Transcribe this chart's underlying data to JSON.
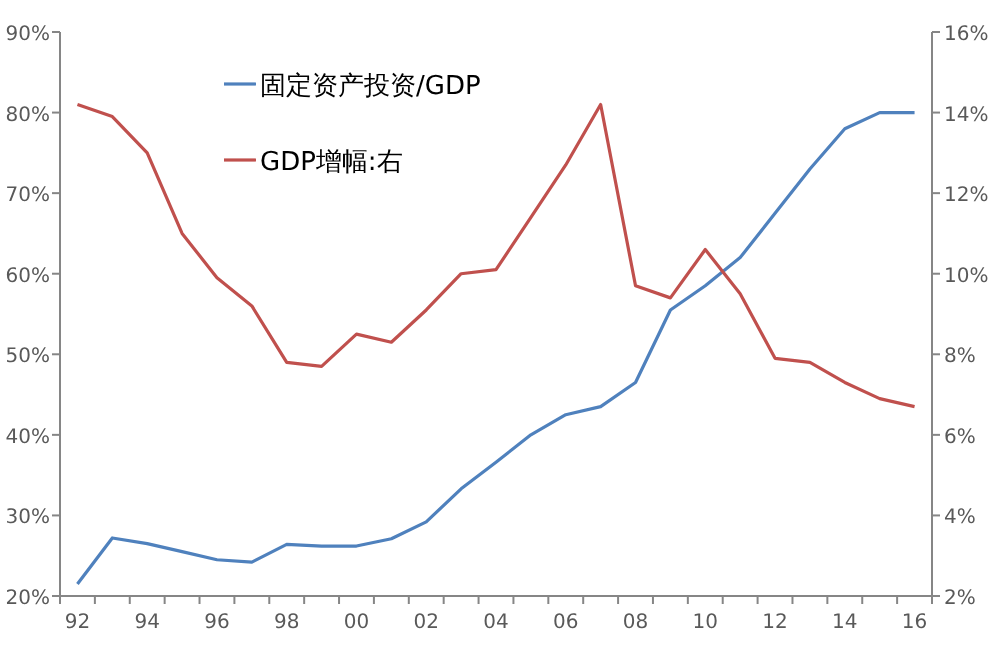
{
  "chart_data": {
    "type": "line",
    "categories": [
      "92",
      null,
      "94",
      null,
      "96",
      null,
      "98",
      null,
      "00",
      null,
      "02",
      null,
      "04",
      null,
      "06",
      null,
      "08",
      null,
      "10",
      null,
      "12",
      null,
      "14",
      null,
      "16"
    ],
    "series": [
      {
        "name": "固定资产投资/GDP",
        "color": "#4f81bd",
        "values": [
          21.5,
          27.2,
          26.5,
          25.5,
          24.5,
          24.2,
          26.4,
          26.2,
          26.2,
          27.1,
          29.2,
          33.3,
          36.6,
          40,
          42.5,
          43.5,
          46.5,
          55.5,
          58.5,
          62,
          67.5,
          73,
          78,
          80,
          80
        ]
      },
      {
        "name": "GDP增幅:右",
        "color": "#c0504d",
        "axis": "y2",
        "values": [
          14.2,
          13.9,
          13.0,
          11.0,
          9.9,
          9.2,
          7.8,
          7.7,
          8.5,
          8.3,
          9.1,
          10.0,
          10.1,
          11.4,
          12.7,
          14.2,
          9.7,
          9.4,
          10.6,
          9.5,
          7.9,
          7.8,
          7.3,
          6.9,
          6.7
        ]
      }
    ],
    "ylim": [
      20,
      90
    ],
    "yticks": [
      {
        "value": 20,
        "label": "20%"
      },
      {
        "value": 30,
        "label": "30%"
      },
      {
        "value": 40,
        "label": "40%"
      },
      {
        "value": 50,
        "label": "50%"
      },
      {
        "value": 60,
        "label": "60%"
      },
      {
        "value": 70,
        "label": "70%"
      },
      {
        "value": 80,
        "label": "80%"
      },
      {
        "value": 90,
        "label": "90%"
      }
    ],
    "y2lim": [
      2,
      16
    ],
    "y2ticks": [
      {
        "value": 2,
        "label": "2%"
      },
      {
        "value": 4,
        "label": "4%"
      },
      {
        "value": 6,
        "label": "6%"
      },
      {
        "value": 8,
        "label": "8%"
      },
      {
        "value": 10,
        "label": "10%"
      },
      {
        "value": 12,
        "label": "12%"
      },
      {
        "value": 14,
        "label": "14%"
      },
      {
        "value": 16,
        "label": "16%"
      }
    ],
    "legend": "top left",
    "grid": false,
    "marker": "none",
    "line_style": "solid"
  }
}
